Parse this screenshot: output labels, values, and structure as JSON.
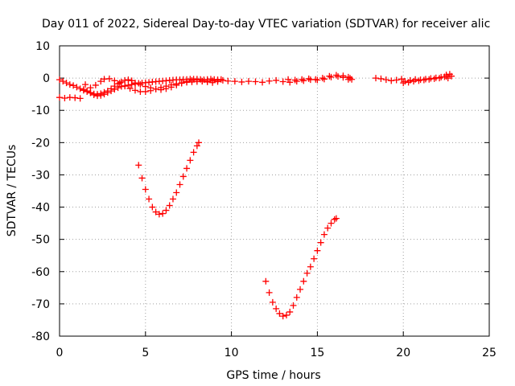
{
  "chart_data": {
    "type": "scatter",
    "title": "Day 011 of 2022, Sidereal Day-to-day VTEC variation (SDTVAR) for receiver alic",
    "xlabel": "GPS time / hours",
    "ylabel": "SDTVAR / TECUs",
    "xlim": [
      0,
      25
    ],
    "ylim": [
      -80,
      10
    ],
    "xticks": [
      0,
      5,
      10,
      15,
      20,
      25
    ],
    "yticks": [
      10,
      0,
      -10,
      -20,
      -30,
      -40,
      -50,
      -60,
      -70,
      -80
    ],
    "grid": true,
    "legend": "none",
    "marker": "plus",
    "color": "#ff0000",
    "series": [
      {
        "points": [
          [
            0.0,
            -0.5
          ],
          [
            0.2,
            -1.0
          ],
          [
            0.4,
            -1.5
          ],
          [
            0.6,
            -2.0
          ],
          [
            0.8,
            -2.3
          ],
          [
            1.0,
            -2.8
          ],
          [
            1.2,
            -3.3
          ],
          [
            1.4,
            -3.8
          ],
          [
            1.6,
            -4.2
          ],
          [
            1.8,
            -4.6
          ],
          [
            2.0,
            -4.9
          ],
          [
            2.2,
            -5.0
          ],
          [
            2.4,
            -4.8
          ],
          [
            2.6,
            -4.4
          ],
          [
            2.8,
            -4.0
          ],
          [
            3.0,
            -3.3
          ],
          [
            3.2,
            -2.5
          ],
          [
            3.4,
            -1.8
          ],
          [
            3.6,
            -1.2
          ],
          [
            3.8,
            -0.7
          ],
          [
            4.0,
            -0.5
          ],
          [
            4.2,
            -0.8
          ],
          [
            0.0,
            -6.0
          ],
          [
            0.3,
            -6.2
          ],
          [
            0.6,
            -6.0
          ],
          [
            0.9,
            -6.1
          ],
          [
            1.2,
            -6.3
          ],
          [
            1.4,
            -3.5
          ],
          [
            1.6,
            -4.0
          ],
          [
            1.8,
            -4.5
          ],
          [
            2.0,
            -5.2
          ],
          [
            2.2,
            -5.5
          ],
          [
            2.4,
            -5.4
          ],
          [
            2.6,
            -5.0
          ],
          [
            2.8,
            -4.5
          ],
          [
            3.0,
            -4.0
          ],
          [
            3.2,
            -3.5
          ],
          [
            3.4,
            -3.0
          ],
          [
            3.6,
            -2.6
          ],
          [
            3.8,
            -2.4
          ],
          [
            4.0,
            -2.2
          ],
          [
            4.2,
            -2.0
          ],
          [
            4.4,
            -1.8
          ],
          [
            4.6,
            -1.6
          ],
          [
            4.8,
            -1.5
          ],
          [
            5.0,
            -1.4
          ],
          [
            5.2,
            -1.3
          ],
          [
            5.4,
            -1.2
          ],
          [
            5.6,
            -1.1
          ],
          [
            5.8,
            -1.0
          ],
          [
            6.0,
            -0.9
          ],
          [
            6.2,
            -0.8
          ],
          [
            6.4,
            -0.7
          ],
          [
            6.6,
            -0.6
          ],
          [
            6.8,
            -0.5
          ],
          [
            7.0,
            -0.5
          ],
          [
            7.2,
            -0.4
          ],
          [
            7.4,
            -0.4
          ],
          [
            7.6,
            -0.3
          ],
          [
            7.8,
            -0.3
          ],
          [
            8.0,
            -0.3
          ],
          [
            8.2,
            -0.4
          ],
          [
            8.4,
            -0.5
          ],
          [
            8.6,
            -0.4
          ],
          [
            8.8,
            -0.3
          ],
          [
            9.0,
            -0.4
          ],
          [
            9.2,
            -0.5
          ],
          [
            9.4,
            -0.4
          ],
          [
            1.5,
            -2.0
          ],
          [
            1.8,
            -3.0
          ],
          [
            2.1,
            -2.2
          ],
          [
            2.4,
            -1.0
          ],
          [
            2.6,
            -0.3
          ],
          [
            2.9,
            -0.2
          ],
          [
            3.2,
            -0.8
          ],
          [
            3.5,
            -1.5
          ],
          [
            3.8,
            -2.5
          ],
          [
            4.1,
            -3.2
          ],
          [
            4.4,
            -3.8
          ],
          [
            4.7,
            -4.2
          ],
          [
            5.0,
            -4.2
          ],
          [
            5.3,
            -3.9
          ],
          [
            5.6,
            -3.4
          ],
          [
            5.9,
            -2.9
          ],
          [
            6.2,
            -2.5
          ],
          [
            6.5,
            -2.1
          ],
          [
            6.8,
            -1.8
          ],
          [
            7.1,
            -1.5
          ],
          [
            7.4,
            -1.3
          ],
          [
            7.7,
            -1.2
          ],
          [
            8.0,
            -1.1
          ],
          [
            8.3,
            -1.0
          ],
          [
            8.6,
            -0.9
          ],
          [
            8.9,
            -0.8
          ],
          [
            9.2,
            -0.7
          ],
          [
            4.4,
            -1.5
          ],
          [
            4.7,
            -2.0
          ],
          [
            5.0,
            -2.6
          ],
          [
            5.3,
            -3.0
          ],
          [
            5.6,
            -3.4
          ],
          [
            5.9,
            -3.6
          ],
          [
            6.2,
            -3.3
          ],
          [
            6.5,
            -2.8
          ],
          [
            6.8,
            -2.2
          ],
          [
            7.1,
            -1.6
          ],
          [
            7.4,
            -1.0
          ],
          [
            7.7,
            -0.7
          ],
          [
            8.0,
            -0.6
          ],
          [
            8.3,
            -0.9
          ],
          [
            8.6,
            -1.2
          ],
          [
            8.9,
            -1.4
          ],
          [
            9.2,
            -1.1
          ],
          [
            9.5,
            -0.7
          ],
          [
            9.8,
            -0.9
          ],
          [
            10.2,
            -1.0
          ],
          [
            10.6,
            -1.2
          ],
          [
            11.0,
            -1.0
          ],
          [
            11.4,
            -1.1
          ],
          [
            11.8,
            -1.3
          ],
          [
            12.2,
            -0.9
          ],
          [
            12.6,
            -0.7
          ],
          [
            13.0,
            -1.1
          ],
          [
            13.4,
            -1.3
          ],
          [
            13.8,
            -1.0
          ],
          [
            14.2,
            -0.8
          ],
          [
            14.6,
            -0.5
          ],
          [
            15.0,
            -0.6
          ],
          [
            15.4,
            -0.3
          ],
          [
            15.8,
            0.3
          ],
          [
            16.2,
            0.5
          ],
          [
            16.5,
            0.2
          ],
          [
            16.8,
            -0.4
          ],
          [
            13.3,
            -0.4
          ],
          [
            13.7,
            -0.6
          ],
          [
            14.1,
            -0.4
          ],
          [
            14.5,
            -0.2
          ],
          [
            14.9,
            -0.4
          ],
          [
            15.3,
            0.0
          ],
          [
            15.7,
            0.6
          ],
          [
            16.1,
            0.9
          ],
          [
            16.5,
            0.7
          ],
          [
            16.9,
            0.0
          ],
          [
            17.0,
            -0.4
          ],
          [
            16.8,
            0.3
          ],
          [
            18.4,
            0.0
          ],
          [
            18.7,
            -0.2
          ],
          [
            19.0,
            -0.5
          ],
          [
            19.3,
            -0.8
          ],
          [
            19.6,
            -0.6
          ],
          [
            19.9,
            -0.3
          ],
          [
            20.1,
            -1.0
          ],
          [
            20.4,
            -0.7
          ],
          [
            20.7,
            -0.4
          ],
          [
            21.0,
            -0.5
          ],
          [
            21.3,
            -0.3
          ],
          [
            21.6,
            -0.1
          ],
          [
            21.9,
            0.1
          ],
          [
            22.2,
            0.3
          ],
          [
            22.5,
            0.5
          ],
          [
            22.8,
            0.6
          ],
          [
            20.0,
            -1.5
          ],
          [
            20.3,
            -1.3
          ],
          [
            20.6,
            -1.0
          ],
          [
            20.9,
            -0.8
          ],
          [
            21.2,
            -0.6
          ],
          [
            21.5,
            -0.4
          ],
          [
            21.8,
            -0.2
          ],
          [
            22.1,
            0.0
          ],
          [
            22.4,
            0.4
          ],
          [
            22.7,
            1.2
          ],
          [
            22.5,
            1.0
          ],
          [
            22.6,
            0.0
          ],
          [
            4.6,
            -27.0
          ],
          [
            4.8,
            -31.0
          ],
          [
            5.0,
            -34.5
          ],
          [
            5.2,
            -37.5
          ],
          [
            5.4,
            -40.0
          ],
          [
            5.6,
            -41.5
          ],
          [
            5.8,
            -42.2
          ],
          [
            6.0,
            -42.0
          ],
          [
            6.2,
            -41.0
          ],
          [
            6.4,
            -39.5
          ],
          [
            6.6,
            -37.5
          ],
          [
            6.8,
            -35.5
          ],
          [
            7.0,
            -33.0
          ],
          [
            7.2,
            -30.5
          ],
          [
            7.4,
            -28.0
          ],
          [
            7.6,
            -25.5
          ],
          [
            7.8,
            -23.0
          ],
          [
            8.0,
            -21.0
          ],
          [
            8.1,
            -20.0
          ],
          [
            12.0,
            -63.0
          ],
          [
            12.2,
            -66.5
          ],
          [
            12.4,
            -69.5
          ],
          [
            12.6,
            -71.5
          ],
          [
            12.8,
            -73.0
          ],
          [
            13.0,
            -73.8
          ],
          [
            13.2,
            -73.5
          ],
          [
            13.4,
            -72.5
          ],
          [
            13.6,
            -70.5
          ],
          [
            13.8,
            -68.0
          ],
          [
            14.0,
            -65.5
          ],
          [
            14.2,
            -63.0
          ],
          [
            14.4,
            -60.5
          ],
          [
            14.6,
            -58.5
          ],
          [
            14.8,
            -56.0
          ],
          [
            15.0,
            -53.5
          ],
          [
            15.2,
            -51.0
          ],
          [
            15.4,
            -48.5
          ],
          [
            15.6,
            -46.5
          ],
          [
            15.8,
            -45.0
          ],
          [
            16.0,
            -43.8
          ],
          [
            16.1,
            -43.5
          ]
        ]
      }
    ]
  }
}
